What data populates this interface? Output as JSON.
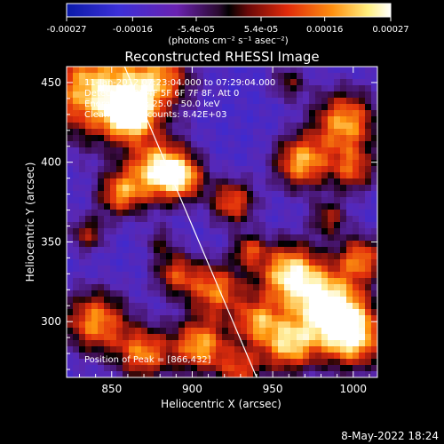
{
  "colorbar": {
    "ticks": [
      "-0.00027",
      "-0.00016",
      "-5.4e-05",
      "5.4e-05",
      "0.00016",
      "0.00027"
    ],
    "tick_values": [
      -0.00027,
      -0.00016,
      -5.4e-05,
      5.4e-05,
      0.00016,
      0.00027
    ],
    "range": [
      -0.00027,
      0.00027
    ],
    "unit_label": "(photons cm⁻² s⁻¹ asec⁻²)"
  },
  "chart_data": {
    "type": "heatmap",
    "title": "Reconstructed RHESSI Image",
    "xlabel": "Heliocentric X (arcsec)",
    "ylabel": "Heliocentric Y (arcsec)",
    "xlim": [
      822,
      1015
    ],
    "ylim": [
      265,
      460
    ],
    "xticks": [
      850,
      900,
      950,
      1000
    ],
    "yticks": [
      300,
      350,
      400,
      450
    ],
    "limb_line": {
      "x": [
        858,
        940
      ],
      "y": [
        460,
        265
      ]
    },
    "grid": false,
    "colormap_stops": [
      "#1418b4",
      "#3c2ad2",
      "#5a28b4",
      "#3a0a40",
      "#000000",
      "#781010",
      "#e12e0c",
      "#ff9a10",
      "#fff0a0",
      "#ffffff"
    ]
  },
  "annotations": {
    "line1": "11-Jan-2012 07:23:04.000 to 07:29:04.000",
    "line2": "Detectors: 3F 4F 5F 6F 7F 8F, Att 0",
    "line3": "Energy Range: 25.0 - 50.0 keV",
    "line4": "Clean     Total counts: 8.42E+03",
    "peak": "Position of Peak = [866,432]"
  },
  "timestamp": "8-May-2022 18:24"
}
